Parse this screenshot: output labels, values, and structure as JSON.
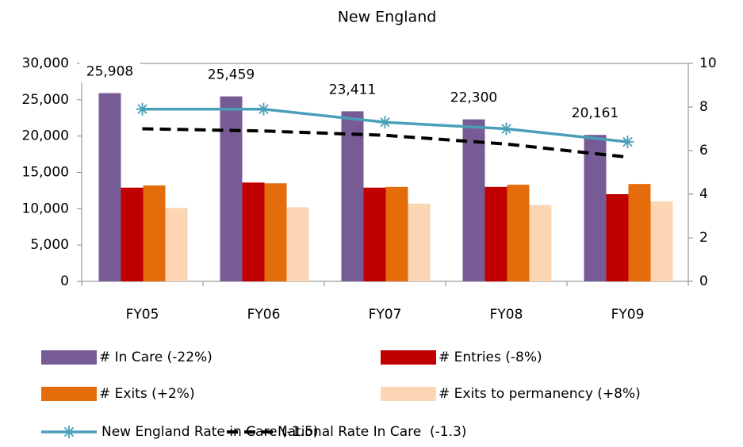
{
  "chart_data": {
    "type": "bar",
    "title": "New England",
    "categories": [
      "FY05",
      "FY06",
      "FY07",
      "FY08",
      "FY09"
    ],
    "series": [
      {
        "name": "# In Care (-22%)",
        "color": "#775b95",
        "values": [
          25908,
          25459,
          23411,
          22300,
          20161
        ],
        "value_labels": [
          "25,908",
          "25,459",
          "23,411",
          "22,300",
          "20,161"
        ]
      },
      {
        "name": "# Entries (-8%)",
        "color": "#c00000",
        "values": [
          12900,
          13600,
          12900,
          13000,
          12000
        ]
      },
      {
        "name": "# Exits (+2%)",
        "color": "#e46c0a",
        "values": [
          13200,
          13500,
          13000,
          13300,
          13400
        ]
      },
      {
        "name": "# Exits to permanency (+8%)",
        "color": "#fcd5b5",
        "values": [
          10100,
          10200,
          10700,
          10500,
          11000
        ]
      },
      {
        "name": "New England Rate in Care (-1.5)",
        "color": "#4a9fb8",
        "type": "line",
        "axis": "y2",
        "marker": "asterisk",
        "values": [
          7.9,
          7.9,
          7.3,
          7.0,
          6.4
        ]
      },
      {
        "name": "National Rate In Care  (-1.3)",
        "color": "#000000",
        "type": "line",
        "axis": "y2",
        "dashed": true,
        "values": [
          7.0,
          6.9,
          6.7,
          6.3,
          5.7
        ]
      }
    ],
    "ylim": [
      0,
      30000
    ],
    "yticks": [
      0,
      {
        "value": 5000,
        "label": "5,000"
      },
      {
        "value": 10000,
        "label": "10,000"
      },
      {
        "value": 15000,
        "label": "15,000"
      },
      {
        "value": 20000,
        "label": "20,000"
      },
      {
        "value": 25000,
        "label": "25,000"
      },
      {
        "value": 30000,
        "label": "30,000"
      }
    ],
    "y2lim": [
      0,
      10
    ],
    "y2ticks": [
      0,
      2,
      4,
      6,
      8,
      10
    ]
  }
}
